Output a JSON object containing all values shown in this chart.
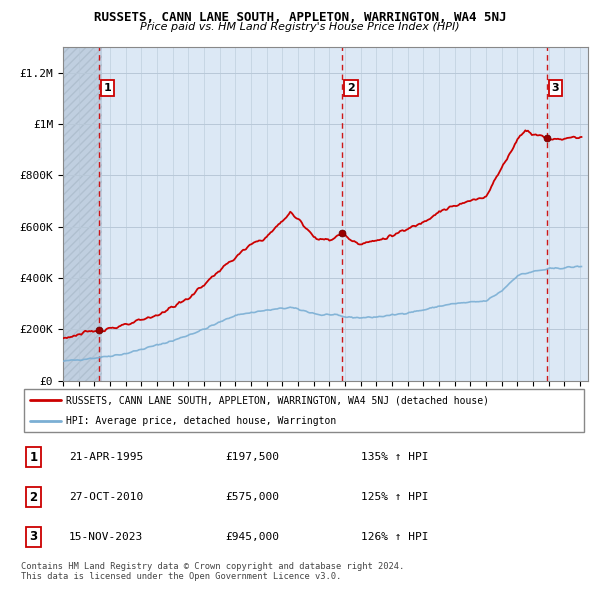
{
  "title": "RUSSETS, CANN LANE SOUTH, APPLETON, WARRINGTON, WA4 5NJ",
  "subtitle": "Price paid vs. HM Land Registry's House Price Index (HPI)",
  "sale_year_floats": [
    1995.31,
    2010.83,
    2023.88
  ],
  "sale_prices": [
    197500,
    575000,
    945000
  ],
  "sale_labels": [
    "1",
    "2",
    "3"
  ],
  "sale_info": [
    [
      "1",
      "21-APR-1995",
      "£197,500",
      "135% ↑ HPI"
    ],
    [
      "2",
      "27-OCT-2010",
      "£575,000",
      "125% ↑ HPI"
    ],
    [
      "3",
      "15-NOV-2023",
      "£945,000",
      "126% ↑ HPI"
    ]
  ],
  "legend_line1": "RUSSETS, CANN LANE SOUTH, APPLETON, WARRINGTON, WA4 5NJ (detached house)",
  "legend_line2": "HPI: Average price, detached house, Warrington",
  "footer": "Contains HM Land Registry data © Crown copyright and database right 2024.\nThis data is licensed under the Open Government Licence v3.0.",
  "price_line_color": "#cc0000",
  "hpi_line_color": "#7bafd4",
  "ylim": [
    0,
    1300000
  ],
  "yticks": [
    0,
    200000,
    400000,
    600000,
    800000,
    1000000,
    1200000
  ],
  "ytick_labels": [
    "£0",
    "£200K",
    "£400K",
    "£600K",
    "£800K",
    "£1M",
    "£1.2M"
  ],
  "xstart_year": 1993,
  "xend_year": 2026,
  "bg_color": "#dce8f5",
  "hatch_color": "#c0cfe0"
}
